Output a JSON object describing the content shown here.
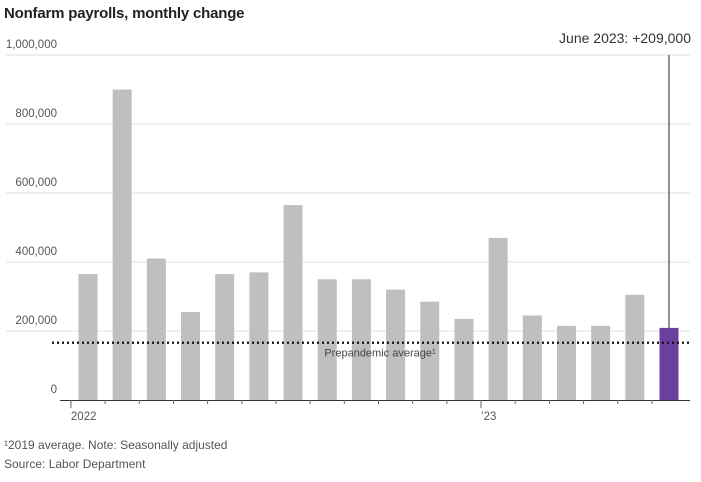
{
  "title": "Nonfarm payrolls, monthly change",
  "chart_data": {
    "type": "bar",
    "title": "Nonfarm payrolls, monthly change",
    "xlabel": "",
    "ylabel": "",
    "ylim": [
      0,
      1000000
    ],
    "yticks": [
      0,
      200000,
      400000,
      600000,
      800000,
      1000000
    ],
    "ytick_labels": [
      "0",
      "200,000",
      "400,000",
      "600,000",
      "800,000",
      "1,000,000"
    ],
    "x_tick_labels": [
      {
        "label": "2022",
        "category_index": 0
      },
      {
        "label": "’23",
        "category_index": 12
      }
    ],
    "categories": [
      "Jan 2022",
      "Feb 2022",
      "Mar 2022",
      "Apr 2022",
      "May 2022",
      "Jun 2022",
      "Jul 2022",
      "Aug 2022",
      "Sep 2022",
      "Oct 2022",
      "Nov 2022",
      "Dec 2022",
      "Jan 2023",
      "Feb 2023",
      "Mar 2023",
      "Apr 2023",
      "May 2023",
      "Jun 2023"
    ],
    "values": [
      365000,
      900000,
      410000,
      255000,
      365000,
      370000,
      565000,
      350000,
      350000,
      320000,
      285000,
      235000,
      470000,
      245000,
      215000,
      215000,
      305000,
      209000
    ],
    "highlight_index": 17,
    "bar_color": "#bfbfbf",
    "highlight_color": "#6b3fa0",
    "grid": true,
    "reference_line": {
      "value": 166000,
      "label": "Prepandemic average¹"
    },
    "callout": "June 2023: +209,000"
  },
  "footer": {
    "note": "¹2019 average. Note: Seasonally adjusted",
    "source": "Source: Labor Department"
  }
}
